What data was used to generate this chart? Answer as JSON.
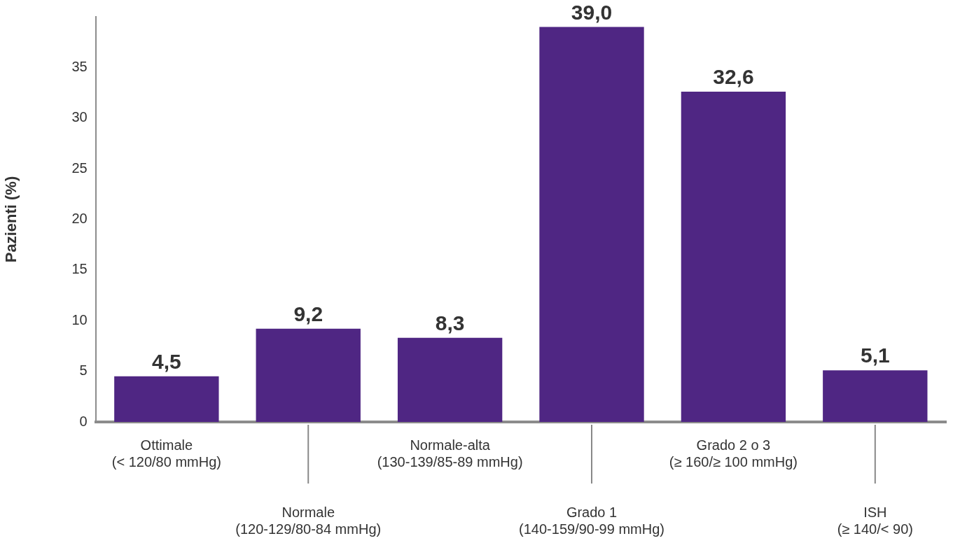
{
  "chart_data": {
    "type": "bar",
    "ylabel": "Pazienti (%)",
    "categories": [
      "Ottimale\n(< 120/80 mmHg)",
      "Normale\n(120-129/80-84 mmHg)",
      "Normale-alta\n(130-139/85-89 mmHg)",
      "Grado 1\n(140-159/90-99 mmHg)",
      "Grado 2 o 3\n(≥ 160/≥ 100 mmHg)",
      "ISH\n(≥ 140/< 90)"
    ],
    "values": [
      4.5,
      9.2,
      8.3,
      39.0,
      32.6,
      5.1
    ],
    "value_labels": [
      "4,5",
      "9,2",
      "8,3",
      "39,0",
      "32,6",
      "5,1"
    ],
    "color": "#4f2683",
    "ylim": [
      0,
      40
    ],
    "yticks": [
      0,
      5,
      10,
      15,
      20,
      25,
      30,
      35
    ],
    "grid": false,
    "legend": false
  }
}
